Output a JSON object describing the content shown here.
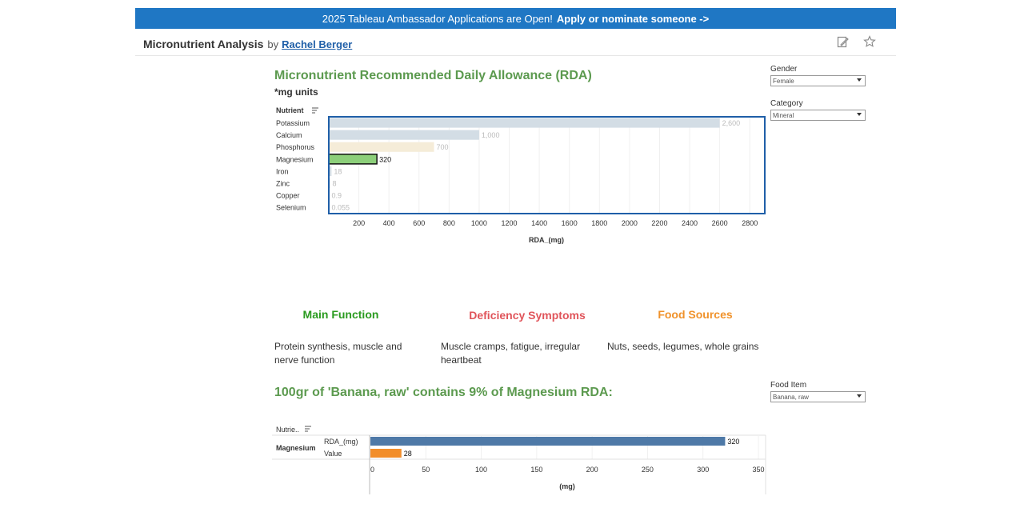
{
  "banner": {
    "text": "2025 Tableau Ambassador Applications are Open!",
    "link": "Apply or nominate someone ->"
  },
  "header": {
    "viz_title": "Micronutrient Analysis",
    "by": "by",
    "author": "Rachel Berger",
    "icons": [
      "edit-icon",
      "favorite-star-icon"
    ]
  },
  "chart1": {
    "title": "Micronutrient Recommended Daily Allowance (RDA)",
    "subtitle": "*mg units",
    "row_header": "Nutrient",
    "xlabel": "RDA_(mg)"
  },
  "chart_data": [
    {
      "type": "bar",
      "orientation": "horizontal",
      "title": "Micronutrient Recommended Daily Allowance (RDA)",
      "xlabel": "RDA_(mg)",
      "categories": [
        "Potassium",
        "Calcium",
        "Phosphorus",
        "Magnesium",
        "Iron",
        "Zinc",
        "Copper",
        "Selenium"
      ],
      "values": [
        2600,
        1000,
        700,
        320,
        18,
        8,
        0.9,
        0.055
      ],
      "value_labels": [
        "2,600",
        "1,000",
        "700",
        "320",
        "18",
        "8",
        "0.9",
        "0.055"
      ],
      "colors": [
        "#d3dde5",
        "#d3dde5",
        "#f5ecd8",
        "#8ccf7a",
        "#d3dde5",
        "#d3dde5",
        "#d3dde5",
        "#d3dde5"
      ],
      "highlighted": "Magnesium",
      "xlim": [
        0,
        2900
      ],
      "xticks": [
        200,
        400,
        600,
        800,
        1000,
        1200,
        1400,
        1600,
        1800,
        2000,
        2200,
        2400,
        2600,
        2800
      ]
    },
    {
      "type": "bar",
      "orientation": "horizontal",
      "title": "100gr of 'Banana, raw' contains 9% of Magnesium RDA:",
      "xlabel": "(mg)",
      "group": "Magnesium",
      "categories": [
        "RDA_(mg)",
        "Value"
      ],
      "values": [
        320,
        28
      ],
      "value_labels": [
        "320",
        "28"
      ],
      "colors": [
        "#4e79a7",
        "#f28e2b"
      ],
      "xlim": [
        0,
        350
      ],
      "xticks": [
        0,
        50,
        100,
        150,
        200,
        250,
        300,
        350
      ]
    }
  ],
  "filters": {
    "gender": {
      "label": "Gender",
      "value": "Female"
    },
    "category": {
      "label": "Category",
      "value": "Mineral"
    },
    "food": {
      "label": "Food Item",
      "value": "Banana, raw"
    }
  },
  "info": {
    "main_function": {
      "title": "Main Function",
      "text": "Protein synthesis, muscle and nerve function",
      "color": "#2a9b1f"
    },
    "deficiency": {
      "title": "Deficiency Symptoms",
      "text": "Muscle cramps, fatigue, irregular heartbeat",
      "color": "#e0545a"
    },
    "sources": {
      "title": "Food Sources",
      "text": "Nuts, seeds, legumes, whole grains",
      "color": "#f0922b"
    }
  },
  "chart2": {
    "title": "100gr of 'Banana, raw' contains 9% of Magnesium RDA:",
    "row_header": "Nutrie..",
    "group": "Magnesium"
  }
}
